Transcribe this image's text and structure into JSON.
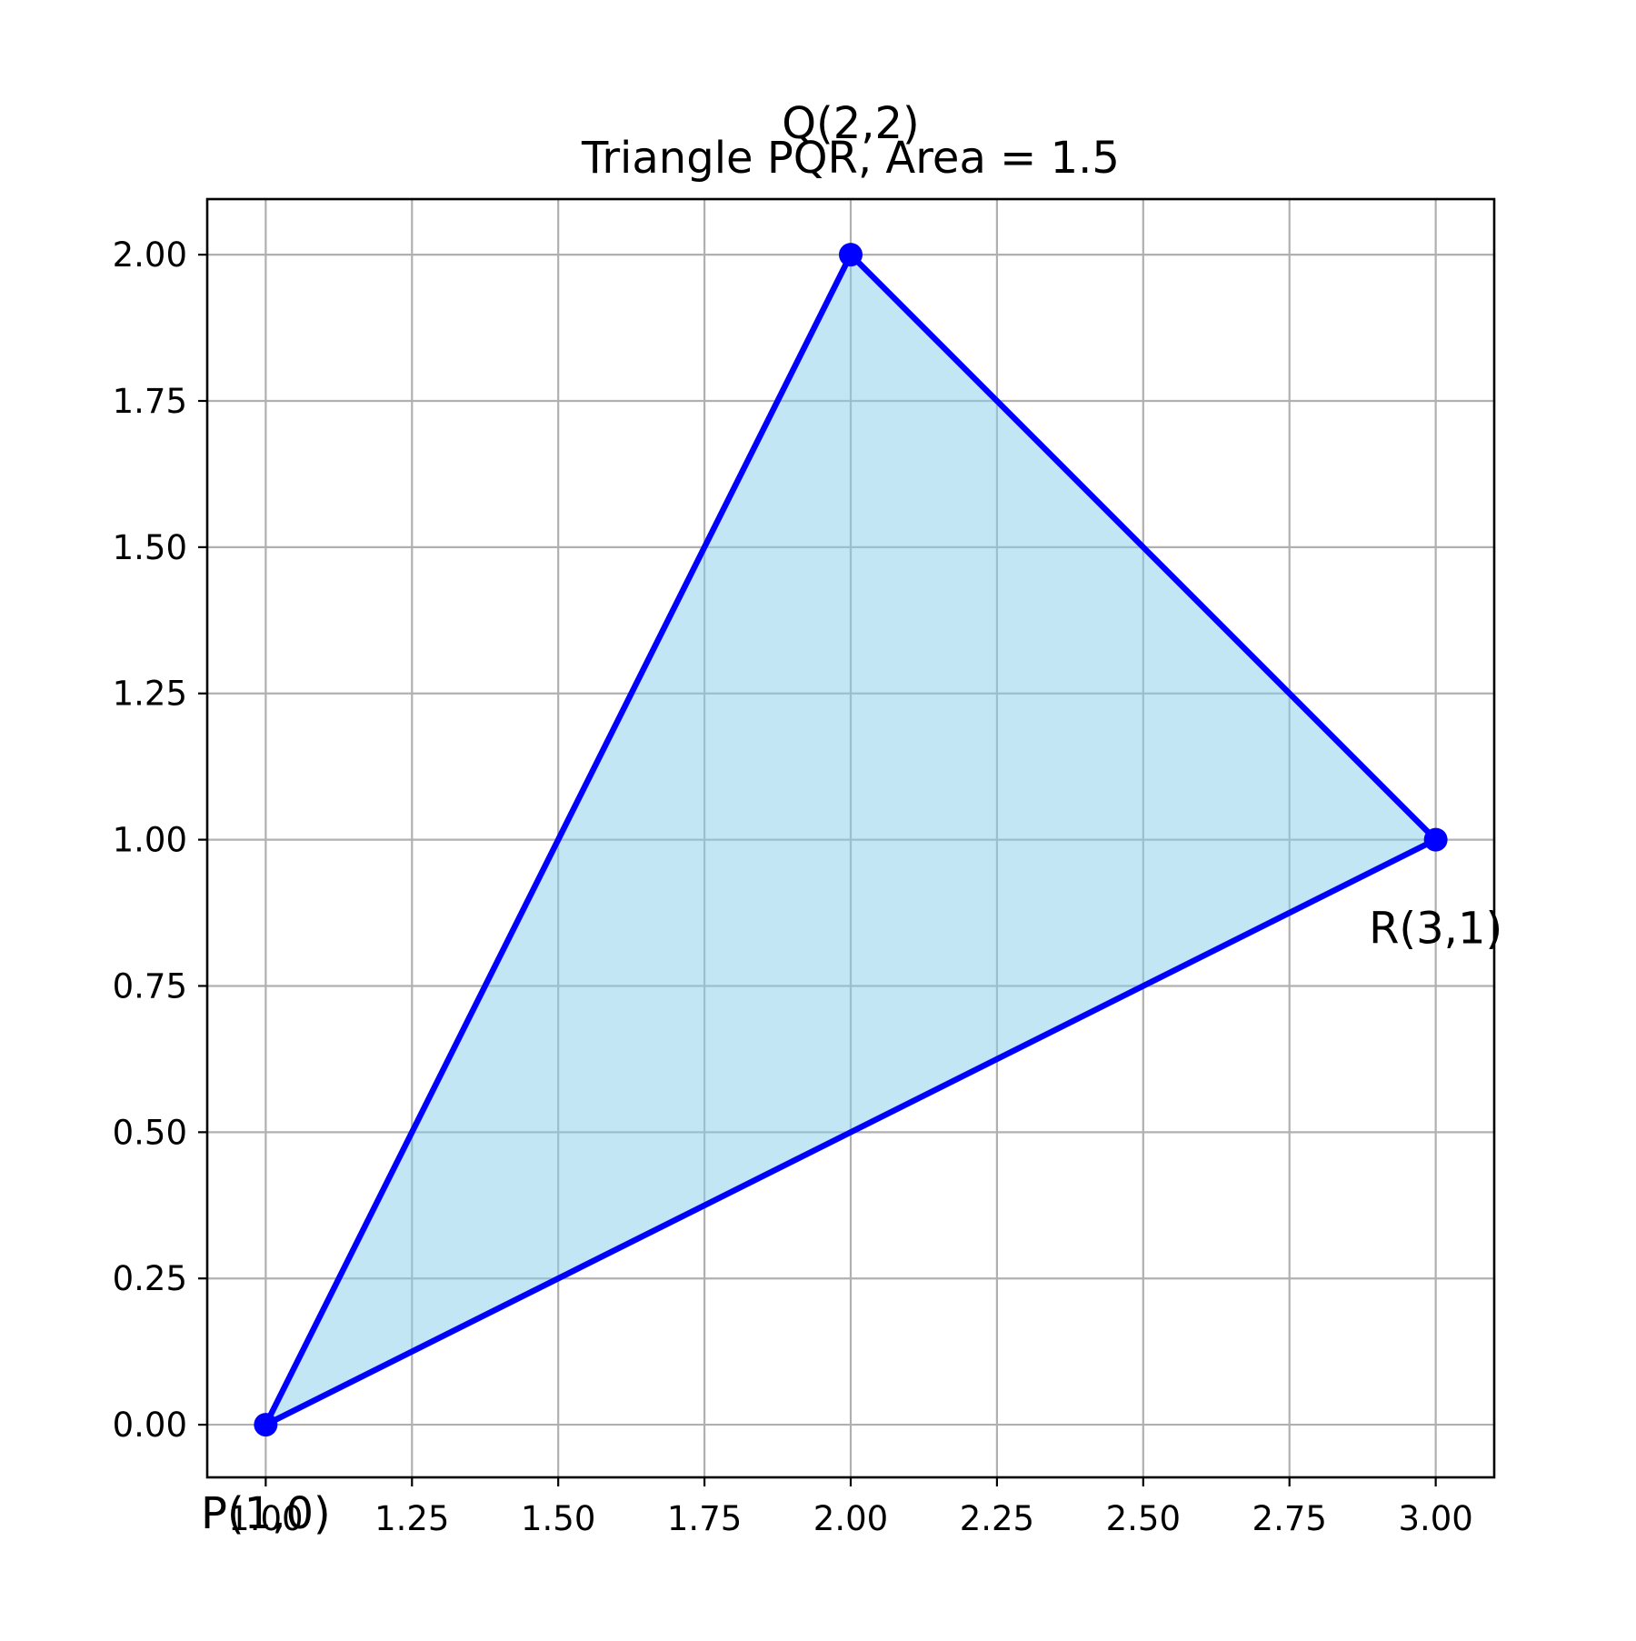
{
  "chart_data": {
    "type": "line",
    "title": "Triangle PQR, Area = 1.5",
    "xlabel": "",
    "ylabel": "",
    "xlim": [
      0.9,
      3.1
    ],
    "ylim": [
      -0.09,
      2.095
    ],
    "grid": true,
    "x_ticks": [
      "1.00",
      "1.25",
      "1.50",
      "1.75",
      "2.00",
      "2.25",
      "2.50",
      "2.75",
      "3.00"
    ],
    "y_ticks": [
      "0.00",
      "0.25",
      "0.50",
      "0.75",
      "1.00",
      "1.25",
      "1.50",
      "1.75",
      "2.00"
    ],
    "points": [
      {
        "label": "P(1,0)",
        "x": 1,
        "y": 0
      },
      {
        "label": "Q(2,2)",
        "x": 2,
        "y": 2
      },
      {
        "label": "R(3,1)",
        "x": 3,
        "y": 1
      }
    ],
    "colors": {
      "edge": "#0000ff",
      "fill": "#87ceeb",
      "grid": "#b0b0b0",
      "axes": "#000000"
    }
  }
}
